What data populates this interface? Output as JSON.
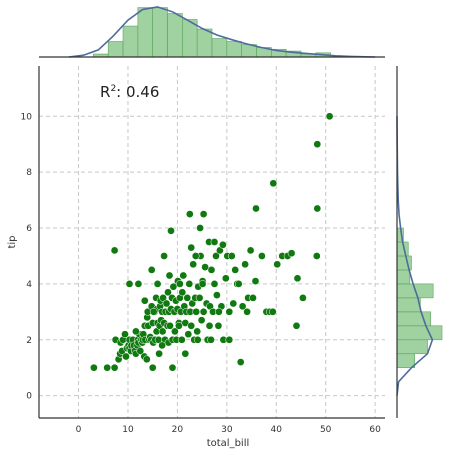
{
  "chart_data": {
    "type": "scatter",
    "xlabel": "total_bill",
    "ylabel": "tip",
    "xlim": [
      -8,
      62
    ],
    "ylim": [
      -0.8,
      11.8
    ],
    "xticks": [
      0,
      10,
      20,
      30,
      40,
      50,
      60
    ],
    "yticks": [
      0,
      2,
      4,
      6,
      8,
      10
    ],
    "grid": true,
    "annotation": {
      "label": "R",
      "superscript": "2",
      "value": ": 0.46"
    },
    "colors": {
      "points": "#107a10",
      "hist": "#8fc98f",
      "hist_edge": "#5aa55a",
      "kde": "#4c6c9c"
    },
    "points": [
      [
        3.1,
        1.0
      ],
      [
        5.8,
        1.0
      ],
      [
        7.3,
        1.0
      ],
      [
        7.5,
        2.0
      ],
      [
        7.3,
        5.2
      ],
      [
        8.1,
        1.3
      ],
      [
        8.4,
        1.5
      ],
      [
        8.5,
        1.9
      ],
      [
        8.8,
        1.6
      ],
      [
        9.0,
        2.0
      ],
      [
        9.6,
        1.4
      ],
      [
        9.8,
        1.7
      ],
      [
        10.1,
        1.8
      ],
      [
        10.3,
        1.7
      ],
      [
        10.3,
        2.0
      ],
      [
        10.6,
        1.6
      ],
      [
        10.7,
        1.8
      ],
      [
        11.0,
        2.0
      ],
      [
        11.2,
        1.8
      ],
      [
        11.4,
        1.6
      ],
      [
        11.6,
        1.5
      ],
      [
        11.9,
        1.8
      ],
      [
        12.0,
        2.0
      ],
      [
        12.1,
        1.9
      ],
      [
        12.3,
        2.2
      ],
      [
        12.5,
        1.6
      ],
      [
        12.7,
        2.0
      ],
      [
        12.9,
        1.9
      ],
      [
        13.0,
        2.0
      ],
      [
        13.1,
        2.2
      ],
      [
        13.3,
        1.4
      ],
      [
        13.4,
        2.5
      ],
      [
        13.5,
        2.0
      ],
      [
        13.8,
        1.3
      ],
      [
        13.9,
        2.8
      ],
      [
        14.0,
        3.0
      ],
      [
        14.1,
        2.5
      ],
      [
        14.3,
        2.0
      ],
      [
        14.5,
        2.1
      ],
      [
        14.7,
        2.0
      ],
      [
        14.8,
        3.2
      ],
      [
        15.0,
        1.0
      ],
      [
        15.0,
        2.6
      ],
      [
        15.1,
        1.9
      ],
      [
        15.4,
        3.0
      ],
      [
        15.5,
        2.0
      ],
      [
        15.7,
        3.5
      ],
      [
        15.8,
        2.3
      ],
      [
        15.9,
        3.1
      ],
      [
        16.0,
        2.6
      ],
      [
        16.2,
        2.0
      ],
      [
        16.3,
        1.5
      ],
      [
        16.4,
        2.5
      ],
      [
        16.5,
        3.2
      ],
      [
        16.6,
        3.4
      ],
      [
        16.7,
        2.7
      ],
      [
        16.9,
        3.0
      ],
      [
        17.0,
        2.3
      ],
      [
        17.1,
        3.5
      ],
      [
        17.3,
        2.6
      ],
      [
        17.5,
        2.0
      ],
      [
        17.6,
        3.0
      ],
      [
        17.8,
        3.3
      ],
      [
        18.0,
        2.5
      ],
      [
        18.1,
        3.7
      ],
      [
        18.2,
        1.9
      ],
      [
        18.3,
        3.0
      ],
      [
        18.5,
        2.5
      ],
      [
        18.7,
        3.1
      ],
      [
        18.9,
        3.5
      ],
      [
        19.0,
        2.0
      ],
      [
        19.2,
        3.9
      ],
      [
        19.4,
        3.0
      ],
      [
        19.5,
        2.3
      ],
      [
        19.7,
        3.4
      ],
      [
        19.8,
        2.0
      ],
      [
        20.0,
        3.1
      ],
      [
        20.1,
        4.1
      ],
      [
        20.3,
        2.6
      ],
      [
        20.5,
        3.5
      ],
      [
        20.7,
        3.0
      ],
      [
        20.9,
        2.0
      ],
      [
        21.0,
        3.7
      ],
      [
        21.2,
        4.3
      ],
      [
        21.4,
        3.2
      ],
      [
        21.6,
        2.6
      ],
      [
        21.8,
        3.0
      ],
      [
        22.0,
        3.5
      ],
      [
        22.2,
        2.2
      ],
      [
        22.4,
        4.0
      ],
      [
        22.6,
        3.0
      ],
      [
        22.8,
        2.5
      ],
      [
        23.0,
        3.3
      ],
      [
        23.2,
        4.7
      ],
      [
        23.4,
        2.0
      ],
      [
        23.6,
        3.5
      ],
      [
        23.8,
        3.0
      ],
      [
        24.0,
        2.3
      ],
      [
        24.2,
        3.9
      ],
      [
        24.5,
        3.5
      ],
      [
        24.7,
        5.0
      ],
      [
        24.9,
        2.7
      ],
      [
        25.1,
        4.1
      ],
      [
        25.3,
        3.0
      ],
      [
        25.6,
        4.6
      ],
      [
        25.9,
        3.3
      ],
      [
        26.1,
        2.0
      ],
      [
        26.4,
        5.5
      ],
      [
        26.6,
        3.2
      ],
      [
        26.9,
        4.5
      ],
      [
        27.2,
        3.0
      ],
      [
        27.5,
        4.0
      ],
      [
        27.8,
        5.0
      ],
      [
        28.0,
        3.6
      ],
      [
        28.3,
        2.5
      ],
      [
        28.6,
        5.2
      ],
      [
        28.9,
        3.2
      ],
      [
        29.3,
        2.0
      ],
      [
        29.8,
        4.2
      ],
      [
        30.1,
        5.0
      ],
      [
        30.5,
        3.0
      ],
      [
        31.0,
        5.0
      ],
      [
        31.3,
        3.3
      ],
      [
        31.7,
        4.5
      ],
      [
        32.1,
        4.0
      ],
      [
        32.8,
        1.2
      ],
      [
        33.2,
        3.2
      ],
      [
        33.7,
        4.7
      ],
      [
        34.3,
        3.5
      ],
      [
        34.8,
        5.2
      ],
      [
        35.3,
        3.5
      ],
      [
        35.8,
        4.1
      ],
      [
        37.1,
        5.0
      ],
      [
        38.0,
        3.0
      ],
      [
        38.7,
        3.0
      ],
      [
        39.4,
        7.6
      ],
      [
        40.2,
        4.7
      ],
      [
        41.2,
        5.0
      ],
      [
        42.3,
        5.0
      ],
      [
        43.1,
        5.1
      ],
      [
        44.1,
        2.5
      ],
      [
        44.3,
        4.2
      ],
      [
        45.4,
        3.5
      ],
      [
        48.2,
        5.0
      ],
      [
        48.3,
        6.7
      ],
      [
        48.3,
        9.0
      ],
      [
        50.8,
        10.0
      ],
      [
        22.5,
        6.5
      ],
      [
        25.3,
        6.5
      ],
      [
        18.7,
        5.9
      ],
      [
        24.6,
        6.0
      ],
      [
        27.5,
        5.5
      ],
      [
        29.2,
        5.4
      ],
      [
        26.8,
        2.0
      ],
      [
        34.1,
        3.0
      ],
      [
        39.3,
        3.0
      ],
      [
        19.0,
        1.0
      ],
      [
        16.0,
        4.0
      ],
      [
        20.5,
        4.0
      ],
      [
        25.1,
        4.0
      ],
      [
        32.4,
        4.0
      ],
      [
        10.3,
        4.0
      ],
      [
        12.1,
        4.0
      ],
      [
        21.6,
        1.5
      ],
      [
        26.5,
        2.5
      ],
      [
        17.3,
        5.0
      ],
      [
        23.7,
        5.0
      ],
      [
        14.8,
        4.5
      ],
      [
        28.4,
        3.0
      ],
      [
        30.5,
        2.0
      ],
      [
        22.8,
        5.3
      ],
      [
        24.1,
        2.0
      ],
      [
        35.9,
        6.7
      ],
      [
        20.3,
        2.5
      ],
      [
        18.4,
        4.3
      ],
      [
        15.2,
        3.0
      ],
      [
        13.4,
        3.4
      ],
      [
        11.6,
        2.3
      ],
      [
        16.9,
        1.8
      ],
      [
        9.4,
        2.2
      ]
    ],
    "x_marginal": {
      "bin_edges": [
        3,
        6,
        9,
        12,
        15,
        18,
        21,
        24,
        27,
        30,
        33,
        36,
        39,
        42,
        45,
        48,
        51
      ],
      "density": [
        0.005,
        0.026,
        0.052,
        0.083,
        0.083,
        0.073,
        0.063,
        0.047,
        0.031,
        0.026,
        0.021,
        0.016,
        0.013,
        0.01,
        0.005,
        0.007
      ],
      "kde_x": [
        -2,
        1,
        4,
        7,
        10,
        13,
        16,
        19,
        22,
        25,
        28,
        31,
        34,
        37,
        40,
        43,
        46,
        49,
        52,
        55,
        58,
        60
      ],
      "kde_y": [
        0.0,
        0.003,
        0.012,
        0.035,
        0.062,
        0.08,
        0.084,
        0.076,
        0.062,
        0.048,
        0.037,
        0.029,
        0.022,
        0.016,
        0.011,
        0.008,
        0.006,
        0.004,
        0.002,
        0.001,
        0.0003,
        0.0
      ]
    },
    "y_marginal": {
      "bin_edges": [
        1.0,
        1.5,
        2.0,
        2.5,
        3.0,
        3.5,
        4.0,
        4.5,
        5.0,
        5.5,
        6.0
      ],
      "density": [
        0.22,
        0.38,
        0.56,
        0.42,
        0.29,
        0.45,
        0.16,
        0.18,
        0.14,
        0.08
      ],
      "kde_y": [
        0.0,
        0.5,
        1.0,
        1.5,
        2.0,
        2.5,
        3.0,
        3.5,
        4.0,
        4.5,
        5.0,
        5.5,
        6.0,
        6.5,
        7.0,
        8.0,
        9.0,
        10.0
      ],
      "kde_x": [
        0.0,
        0.02,
        0.18,
        0.38,
        0.44,
        0.36,
        0.3,
        0.26,
        0.2,
        0.15,
        0.11,
        0.07,
        0.045,
        0.025,
        0.015,
        0.006,
        0.002,
        0.0
      ]
    }
  }
}
